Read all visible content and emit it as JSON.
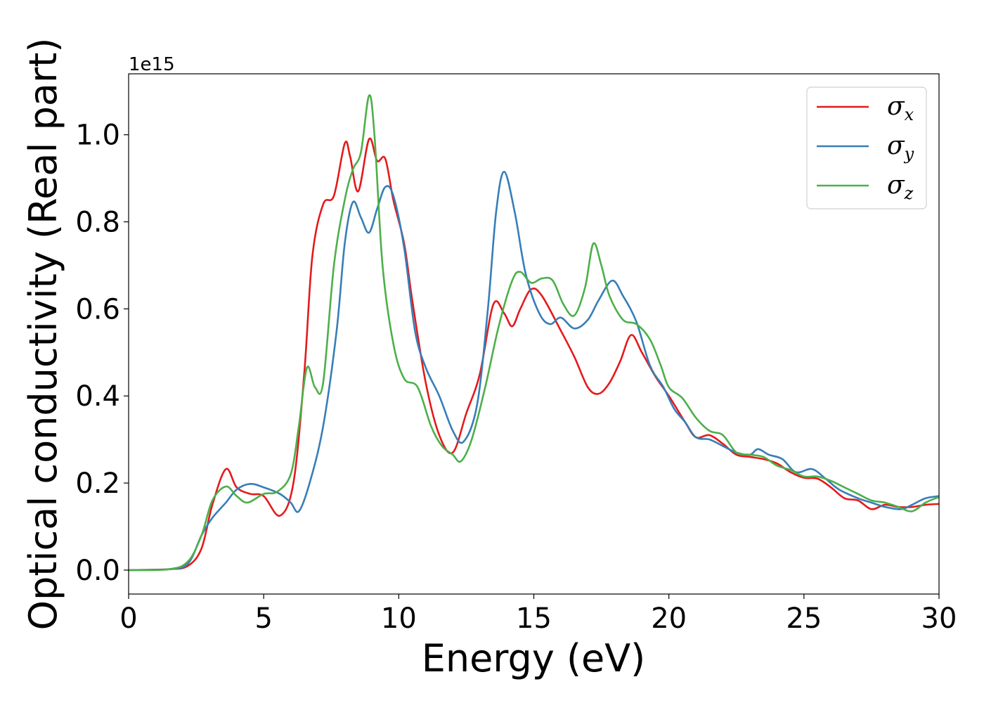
{
  "chart_data": {
    "type": "line",
    "xlabel": "Energy (eV)",
    "ylabel": "Optical conductivity (Real part)",
    "y_offset_text": "1e15",
    "xlim": [
      0,
      30
    ],
    "ylim": [
      -0.055,
      1.14
    ],
    "x_ticks": [
      0,
      5,
      10,
      15,
      20,
      25,
      30
    ],
    "x_tick_labels": [
      "0",
      "5",
      "10",
      "15",
      "20",
      "25",
      "30"
    ],
    "y_ticks": [
      0.0,
      0.2,
      0.4,
      0.6,
      0.8,
      1.0
    ],
    "y_tick_labels": [
      "0.0",
      "0.2",
      "0.4",
      "0.6",
      "0.8",
      "1.0"
    ],
    "grid": false,
    "legend_position": "top-right",
    "series": [
      {
        "name": "σx",
        "symbol": "σ",
        "subscript": "x",
        "color": "#e41a1c",
        "points": [
          [
            0,
            0
          ],
          [
            1.5,
            0.002
          ],
          [
            2.2,
            0.01
          ],
          [
            2.7,
            0.05
          ],
          [
            3.1,
            0.15
          ],
          [
            3.6,
            0.232
          ],
          [
            4.0,
            0.19
          ],
          [
            4.5,
            0.175
          ],
          [
            5.0,
            0.17
          ],
          [
            5.6,
            0.125
          ],
          [
            6.1,
            0.2
          ],
          [
            6.5,
            0.45
          ],
          [
            6.8,
            0.72
          ],
          [
            7.2,
            0.84
          ],
          [
            7.6,
            0.86
          ],
          [
            8.0,
            0.98
          ],
          [
            8.2,
            0.95
          ],
          [
            8.5,
            0.87
          ],
          [
            8.9,
            0.99
          ],
          [
            9.2,
            0.94
          ],
          [
            9.5,
            0.945
          ],
          [
            9.8,
            0.85
          ],
          [
            10.2,
            0.75
          ],
          [
            10.5,
            0.62
          ],
          [
            11.0,
            0.43
          ],
          [
            11.5,
            0.31
          ],
          [
            12.0,
            0.27
          ],
          [
            12.5,
            0.36
          ],
          [
            13.0,
            0.45
          ],
          [
            13.5,
            0.61
          ],
          [
            13.9,
            0.59
          ],
          [
            14.2,
            0.56
          ],
          [
            14.5,
            0.6
          ],
          [
            14.9,
            0.645
          ],
          [
            15.3,
            0.63
          ],
          [
            16.0,
            0.55
          ],
          [
            16.5,
            0.49
          ],
          [
            17.0,
            0.42
          ],
          [
            17.4,
            0.405
          ],
          [
            17.8,
            0.43
          ],
          [
            18.2,
            0.48
          ],
          [
            18.6,
            0.54
          ],
          [
            19.0,
            0.5
          ],
          [
            19.5,
            0.445
          ],
          [
            20.0,
            0.4
          ],
          [
            20.6,
            0.34
          ],
          [
            21.0,
            0.305
          ],
          [
            21.5,
            0.31
          ],
          [
            22.0,
            0.29
          ],
          [
            22.5,
            0.265
          ],
          [
            23.0,
            0.26
          ],
          [
            23.5,
            0.255
          ],
          [
            24.0,
            0.245
          ],
          [
            24.5,
            0.225
          ],
          [
            25.0,
            0.212
          ],
          [
            25.5,
            0.21
          ],
          [
            26.0,
            0.19
          ],
          [
            26.5,
            0.165
          ],
          [
            27.0,
            0.16
          ],
          [
            27.5,
            0.14
          ],
          [
            28.0,
            0.15
          ],
          [
            28.5,
            0.145
          ],
          [
            29.0,
            0.145
          ],
          [
            29.5,
            0.15
          ],
          [
            30.0,
            0.152
          ]
        ]
      },
      {
        "name": "σy",
        "symbol": "σ",
        "subscript": "y",
        "color": "#377eb8",
        "points": [
          [
            0,
            0
          ],
          [
            1.5,
            0.002
          ],
          [
            2.2,
            0.015
          ],
          [
            2.7,
            0.08
          ],
          [
            3.1,
            0.12
          ],
          [
            3.6,
            0.155
          ],
          [
            4.0,
            0.185
          ],
          [
            4.5,
            0.198
          ],
          [
            5.0,
            0.19
          ],
          [
            5.6,
            0.175
          ],
          [
            6.0,
            0.155
          ],
          [
            6.3,
            0.135
          ],
          [
            6.7,
            0.2
          ],
          [
            7.2,
            0.33
          ],
          [
            7.7,
            0.55
          ],
          [
            8.0,
            0.75
          ],
          [
            8.3,
            0.845
          ],
          [
            8.6,
            0.81
          ],
          [
            8.9,
            0.775
          ],
          [
            9.2,
            0.83
          ],
          [
            9.5,
            0.88
          ],
          [
            9.8,
            0.86
          ],
          [
            10.2,
            0.74
          ],
          [
            10.6,
            0.55
          ],
          [
            11.0,
            0.465
          ],
          [
            11.5,
            0.4
          ],
          [
            12.0,
            0.32
          ],
          [
            12.4,
            0.295
          ],
          [
            12.9,
            0.38
          ],
          [
            13.3,
            0.6
          ],
          [
            13.6,
            0.82
          ],
          [
            13.9,
            0.915
          ],
          [
            14.3,
            0.82
          ],
          [
            14.7,
            0.68
          ],
          [
            15.2,
            0.59
          ],
          [
            15.6,
            0.565
          ],
          [
            16.0,
            0.58
          ],
          [
            16.5,
            0.555
          ],
          [
            17.0,
            0.575
          ],
          [
            17.4,
            0.62
          ],
          [
            17.9,
            0.665
          ],
          [
            18.3,
            0.63
          ],
          [
            18.8,
            0.57
          ],
          [
            19.3,
            0.47
          ],
          [
            19.8,
            0.42
          ],
          [
            20.2,
            0.37
          ],
          [
            20.6,
            0.34
          ],
          [
            21.0,
            0.305
          ],
          [
            21.5,
            0.3
          ],
          [
            22.0,
            0.285
          ],
          [
            22.5,
            0.27
          ],
          [
            23.0,
            0.265
          ],
          [
            23.3,
            0.278
          ],
          [
            23.7,
            0.265
          ],
          [
            24.2,
            0.255
          ],
          [
            24.7,
            0.225
          ],
          [
            25.3,
            0.232
          ],
          [
            25.8,
            0.21
          ],
          [
            26.3,
            0.185
          ],
          [
            27.0,
            0.165
          ],
          [
            27.5,
            0.155
          ],
          [
            28.0,
            0.145
          ],
          [
            28.6,
            0.14
          ],
          [
            29.0,
            0.15
          ],
          [
            29.5,
            0.165
          ],
          [
            30.0,
            0.17
          ]
        ]
      },
      {
        "name": "σz",
        "symbol": "σ",
        "subscript": "z",
        "color": "#4daf4a",
        "points": [
          [
            0,
            0
          ],
          [
            1.5,
            0.002
          ],
          [
            2.2,
            0.02
          ],
          [
            2.7,
            0.08
          ],
          [
            3.1,
            0.16
          ],
          [
            3.6,
            0.192
          ],
          [
            4.0,
            0.17
          ],
          [
            4.4,
            0.155
          ],
          [
            5.0,
            0.175
          ],
          [
            5.5,
            0.18
          ],
          [
            6.0,
            0.22
          ],
          [
            6.3,
            0.33
          ],
          [
            6.6,
            0.465
          ],
          [
            6.9,
            0.42
          ],
          [
            7.2,
            0.43
          ],
          [
            7.6,
            0.7
          ],
          [
            8.0,
            0.85
          ],
          [
            8.3,
            0.92
          ],
          [
            8.6,
            0.96
          ],
          [
            8.9,
            1.09
          ],
          [
            9.1,
            1.0
          ],
          [
            9.4,
            0.7
          ],
          [
            9.8,
            0.52
          ],
          [
            10.2,
            0.44
          ],
          [
            10.7,
            0.42
          ],
          [
            11.2,
            0.33
          ],
          [
            11.6,
            0.285
          ],
          [
            12.0,
            0.265
          ],
          [
            12.3,
            0.25
          ],
          [
            12.7,
            0.3
          ],
          [
            13.2,
            0.42
          ],
          [
            13.7,
            0.56
          ],
          [
            14.2,
            0.665
          ],
          [
            14.5,
            0.685
          ],
          [
            14.9,
            0.66
          ],
          [
            15.3,
            0.67
          ],
          [
            15.7,
            0.665
          ],
          [
            16.1,
            0.61
          ],
          [
            16.5,
            0.585
          ],
          [
            16.9,
            0.65
          ],
          [
            17.2,
            0.75
          ],
          [
            17.5,
            0.7
          ],
          [
            17.8,
            0.63
          ],
          [
            18.3,
            0.575
          ],
          [
            18.8,
            0.565
          ],
          [
            19.3,
            0.53
          ],
          [
            19.7,
            0.47
          ],
          [
            20.0,
            0.42
          ],
          [
            20.5,
            0.395
          ],
          [
            21.0,
            0.35
          ],
          [
            21.5,
            0.32
          ],
          [
            22.0,
            0.31
          ],
          [
            22.5,
            0.27
          ],
          [
            23.0,
            0.265
          ],
          [
            23.5,
            0.26
          ],
          [
            24.0,
            0.24
          ],
          [
            24.5,
            0.23
          ],
          [
            25.0,
            0.215
          ],
          [
            25.5,
            0.215
          ],
          [
            26.0,
            0.205
          ],
          [
            26.5,
            0.19
          ],
          [
            27.0,
            0.175
          ],
          [
            27.5,
            0.16
          ],
          [
            28.0,
            0.155
          ],
          [
            28.5,
            0.145
          ],
          [
            29.0,
            0.135
          ],
          [
            29.5,
            0.155
          ],
          [
            30.0,
            0.168
          ]
        ]
      }
    ]
  }
}
